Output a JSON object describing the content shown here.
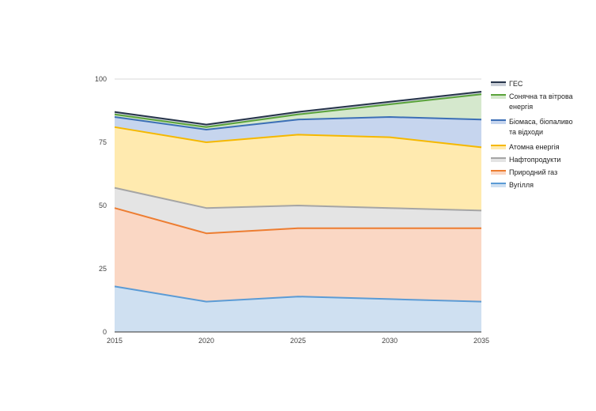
{
  "chart_data": {
    "type": "area",
    "stacked": true,
    "x": [
      2015,
      2020,
      2025,
      2030,
      2035
    ],
    "ylim": [
      0,
      100
    ],
    "yticks": [
      0,
      25,
      50,
      75,
      100
    ],
    "grid": true,
    "legend_position": "right",
    "series": [
      {
        "name": "Вугілля",
        "values": [
          18,
          12,
          14,
          13,
          12
        ],
        "line_color": "#5b9bd5",
        "fill_color": "#cfe0f1"
      },
      {
        "name": "Природний газ",
        "values": [
          31,
          27,
          27,
          28,
          29
        ],
        "line_color": "#ed7d31",
        "fill_color": "#fad7c4"
      },
      {
        "name": "Нафтопродукти",
        "values": [
          8,
          10,
          9,
          8,
          7
        ],
        "line_color": "#a5a5a5",
        "fill_color": "#e4e4e4"
      },
      {
        "name": "Атомна енергія",
        "values": [
          24,
          26,
          28,
          28,
          25
        ],
        "line_color": "#f5b800",
        "fill_color": "#ffeaaf"
      },
      {
        "name": "Біомаса, біопаливо та відходи",
        "values": [
          4,
          5,
          6,
          8,
          11
        ],
        "line_color": "#3c6fb6",
        "fill_color": "#c6d5ee"
      },
      {
        "name": "Сонячна та вітрова енергія",
        "values": [
          1,
          1,
          2,
          5,
          10
        ],
        "line_color": "#5aa33a",
        "fill_color": "#d5e8cd"
      },
      {
        "name": "ГЕС",
        "values": [
          1,
          1,
          1,
          1,
          1
        ],
        "line_color": "#26344a",
        "fill_color": "#c9cfd8"
      }
    ]
  }
}
